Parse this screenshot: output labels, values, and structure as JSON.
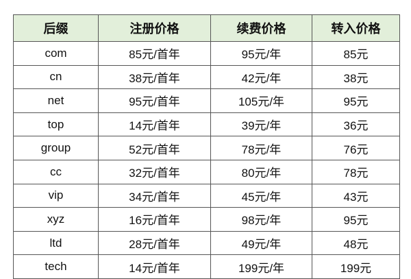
{
  "table": {
    "headers": [
      "后缀",
      "注册价格",
      "续费价格",
      "转入价格"
    ],
    "header_bg": "#e2efda",
    "rows": [
      [
        "com",
        "85元/首年",
        "95元/年",
        "85元"
      ],
      [
        "cn",
        "38元/首年",
        "42元/年",
        "38元"
      ],
      [
        "net",
        "95元/首年",
        "105元/年",
        "95元"
      ],
      [
        "top",
        "14元/首年",
        "39元/年",
        "36元"
      ],
      [
        "group",
        "52元/首年",
        "78元/年",
        "76元"
      ],
      [
        "cc",
        "32元/首年",
        "80元/年",
        "78元"
      ],
      [
        "vip",
        "34元/首年",
        "45元/年",
        "43元"
      ],
      [
        "xyz",
        "16元/首年",
        "98元/年",
        "95元"
      ],
      [
        "ltd",
        "28元/首年",
        "49元/年",
        "48元"
      ],
      [
        "tech",
        "14元/首年",
        "199元/年",
        "199元"
      ]
    ]
  }
}
